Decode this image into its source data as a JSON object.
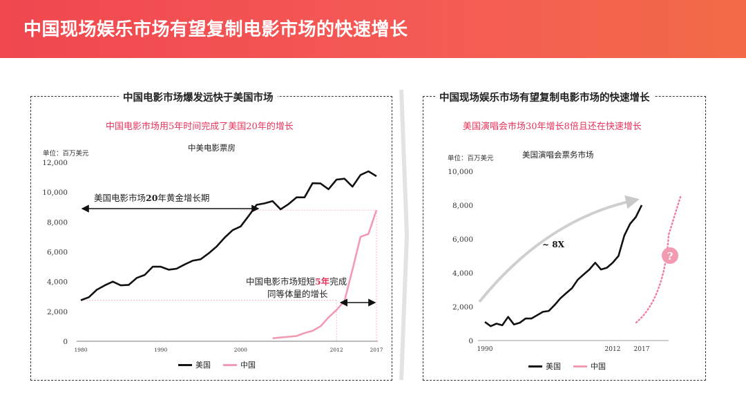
{
  "header": {
    "title": "中国现场娱乐市场有望复制电影市场的快速增长"
  },
  "left": {
    "panel_title": "中国电影市场爆发远快于美国市场",
    "subtitle": "中国电影市场用5年时间完成了美国20年的增长",
    "unit": "单位：百万美元",
    "chart_title": "中美电影票房",
    "annotation_us_1": "美国电影市场",
    "annotation_us_bold": "20",
    "annotation_us_2": "年黄金增长期",
    "annotation_cn_1": "中国电影市场短短",
    "annotation_cn_red": "5年",
    "annotation_cn_2": "完成",
    "annotation_cn_line2": "同等体量的增长",
    "legend_us": "美国",
    "legend_cn": "中国"
  },
  "right": {
    "panel_title": "中国现场娱乐市场有望复制电影市场的快速增长",
    "subtitle": "美国演唱会市场30年增长8倍且还在快速增长",
    "unit": "单位：百万美元",
    "chart_title": "美国演唱会票务市场",
    "growth_label": "~ 8X",
    "question_mark": "?",
    "legend_us": "美国",
    "legend_cn": "中国"
  },
  "chart_data": [
    {
      "type": "line",
      "title": "中美电影票房",
      "ylabel": "单位：百万美元",
      "ylim": [
        0,
        12000
      ],
      "yticks": [
        0,
        2000,
        4000,
        6000,
        8000,
        10000,
        12000
      ],
      "ytick_labels": [
        "0",
        "2,000",
        "4,000",
        "6,000",
        "8,000",
        "10,000",
        "12,000"
      ],
      "xlim": [
        1980,
        2017
      ],
      "xtick_labels": [
        "1980",
        "1990",
        "2000",
        "2012",
        "2017"
      ],
      "colors": {
        "美国": "#111111",
        "中国": "#f39ab3"
      },
      "series": [
        {
          "name": "美国",
          "x": [
            1980,
            1981,
            1982,
            1983,
            1984,
            1985,
            1986,
            1987,
            1988,
            1989,
            1990,
            1991,
            1992,
            1993,
            1994,
            1995,
            1996,
            1997,
            1998,
            1999,
            2000,
            2001,
            2002,
            2003,
            2004,
            2005,
            2006,
            2007,
            2008,
            2009,
            2010,
            2011,
            2012,
            2013,
            2014,
            2015,
            2016,
            2017
          ],
          "values": [
            2750,
            2950,
            3450,
            3750,
            4000,
            3750,
            3780,
            4250,
            4450,
            5000,
            5000,
            4800,
            4870,
            5150,
            5400,
            5500,
            5900,
            6350,
            6950,
            7450,
            7700,
            8400,
            9150,
            9250,
            9400,
            8850,
            9200,
            9650,
            9650,
            10600,
            10580,
            10200,
            10840,
            10900,
            10370,
            11150,
            11400,
            11070
          ]
        },
        {
          "name": "中国",
          "x": [
            2004,
            2005,
            2006,
            2007,
            2008,
            2009,
            2010,
            2011,
            2012,
            2013,
            2014,
            2015,
            2016,
            2017
          ],
          "values": [
            200,
            250,
            300,
            350,
            550,
            700,
            1000,
            1600,
            2100,
            2700,
            4800,
            7000,
            7200,
            8800
          ]
        }
      ],
      "legend": "bottom"
    },
    {
      "type": "line",
      "title": "美国演唱会票务市场",
      "ylabel": "单位：百万美元",
      "ylim": [
        0,
        10000
      ],
      "yticks": [
        0,
        2000,
        4000,
        6000,
        8000,
        10000
      ],
      "ytick_labels": [
        "0",
        "2,000",
        "4,000",
        "6,000",
        "8,000",
        "10,000"
      ],
      "xlim": [
        1990,
        2017
      ],
      "xtick_labels": [
        "1990",
        "2012",
        "2017"
      ],
      "colors": {
        "美国": "#111111",
        "中国": "#f39ab3"
      },
      "series": [
        {
          "name": "美国",
          "x": [
            1990,
            1991,
            1992,
            1993,
            1994,
            1995,
            1996,
            1997,
            1998,
            1999,
            2000,
            2001,
            2002,
            2003,
            2004,
            2005,
            2006,
            2007,
            2008,
            2009,
            2010,
            2011,
            2012,
            2013,
            2014,
            2015,
            2016,
            2017
          ],
          "values": [
            1100,
            850,
            1000,
            900,
            1400,
            950,
            1050,
            1300,
            1300,
            1500,
            1700,
            1750,
            2100,
            2500,
            2800,
            3100,
            3600,
            3900,
            4200,
            4600,
            4200,
            4300,
            4600,
            5000,
            6200,
            6900,
            7300,
            8000
          ]
        },
        {
          "name": "中国",
          "x": [],
          "values": []
        }
      ],
      "legend": "bottom"
    }
  ]
}
